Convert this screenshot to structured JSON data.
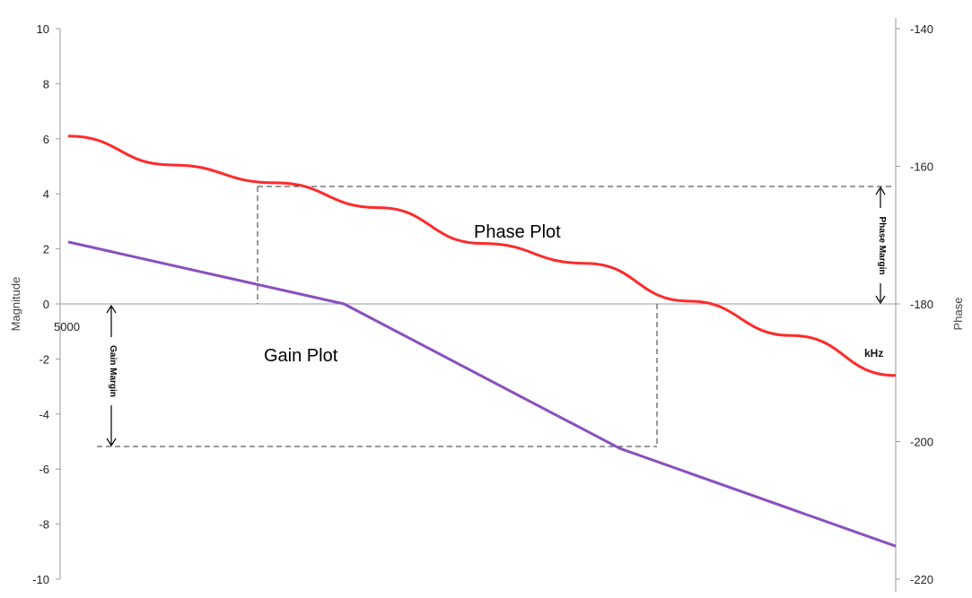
{
  "chart_data": {
    "type": "line",
    "title": "",
    "left_axis": {
      "label": "Magnitude",
      "ylim": [
        -10,
        10
      ],
      "ticks": [
        "10",
        "8",
        "6",
        "4",
        "2",
        "0",
        "-2",
        "-4",
        "-6",
        "-8",
        "-10"
      ]
    },
    "right_axis": {
      "label": "Phase",
      "ylim": [
        -220,
        -140
      ],
      "ticks": [
        "-140",
        "-160",
        "-180",
        "-200",
        "-220"
      ]
    },
    "x_axis": {
      "start_label": "5000",
      "unit_label": "kHz"
    },
    "series": [
      {
        "name": "Phase Plot",
        "axis": "right",
        "color": "#ff2a2a",
        "values": [
          -155.6,
          -159.8,
          -162.4,
          -166.0,
          -171.2,
          -174.1,
          -179.6,
          -184.6,
          -190.4
        ]
      },
      {
        "name": "Gain Plot",
        "axis": "left",
        "color": "#8a4fbf",
        "values": [
          2.25,
          0.0,
          -5.25,
          -8.8
        ]
      }
    ],
    "annotations": {
      "phase_margin": "Phase Margin",
      "gain_margin": "Gain Margin",
      "phase_margin_reference": -180,
      "phase_at_gain_crossover": -163.2,
      "gain_at_phase_crossover": -5.25
    }
  }
}
